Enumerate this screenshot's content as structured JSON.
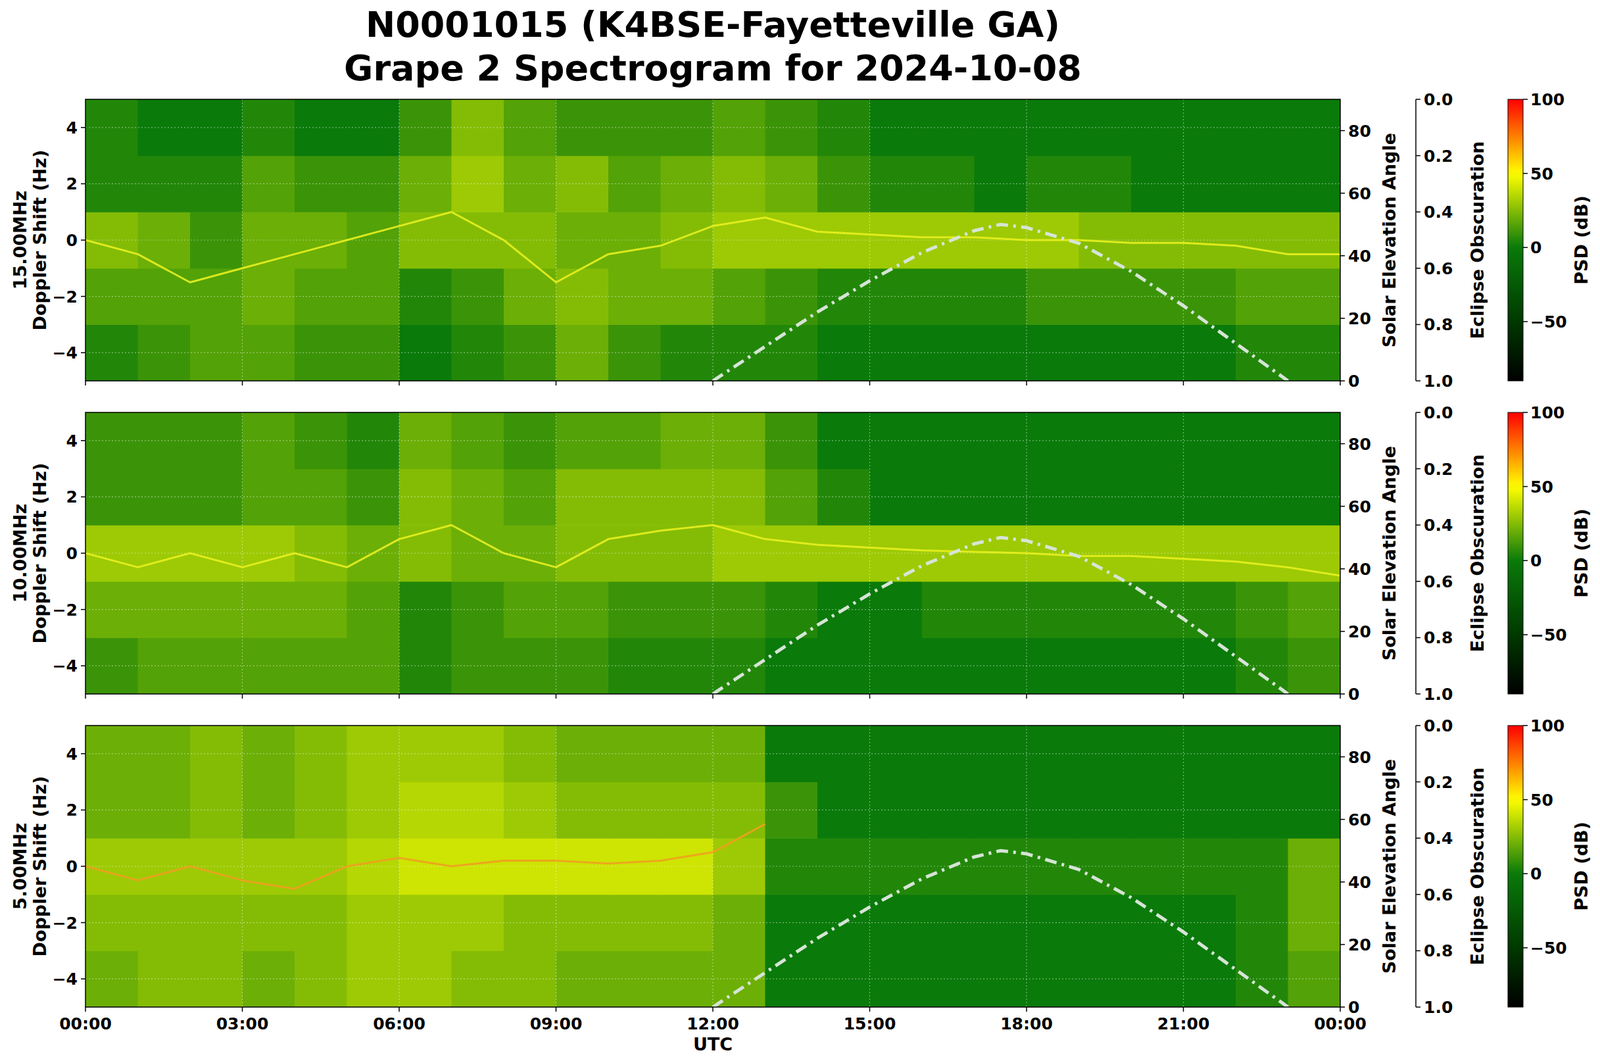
{
  "chart_data": {
    "type": "heatmap",
    "title": "N0001015 (K4BSE-Fayetteville GA)\nGrape 2 Spectrogram for 2024-10-08",
    "xlabel": "UTC",
    "xlim": [
      0,
      24
    ],
    "xticks": [
      {
        "value": 0,
        "label": "00:00"
      },
      {
        "value": 3,
        "label": "03:00"
      },
      {
        "value": 6,
        "label": "06:00"
      },
      {
        "value": 9,
        "label": "09:00"
      },
      {
        "value": 12,
        "label": "12:00"
      },
      {
        "value": 15,
        "label": "15:00"
      },
      {
        "value": 18,
        "label": "18:00"
      },
      {
        "value": 21,
        "label": "21:00"
      },
      {
        "value": 24,
        "label": "00:00"
      }
    ],
    "grid": true,
    "x_edges": [
      0,
      1,
      2,
      3,
      4,
      5,
      6,
      7,
      8,
      9,
      10,
      11,
      12,
      13,
      14,
      15,
      16,
      17,
      18,
      19,
      20,
      21,
      22,
      23,
      24
    ],
    "y_edges": [
      -5,
      -3,
      -1,
      1,
      3,
      5
    ],
    "ylim": [
      -5,
      5
    ],
    "yticks": [
      {
        "value": -4,
        "label": "−4"
      },
      {
        "value": -2,
        "label": "−2"
      },
      0,
      2,
      4
    ],
    "y2label": "Solar Elevation Angle",
    "y2lim": [
      0,
      90
    ],
    "y2ticks": [
      0,
      20,
      40,
      60,
      80
    ],
    "y3label": "Eclipse Obscuration",
    "y3lim": [
      1,
      0
    ],
    "y3ticks": [
      {
        "value": 0,
        "label": "0.0"
      },
      {
        "value": 0.2,
        "label": "0.2"
      },
      {
        "value": 0.4,
        "label": "0.4"
      },
      {
        "value": 0.6,
        "label": "0.6"
      },
      {
        "value": 0.8,
        "label": "0.8"
      },
      {
        "value": 1,
        "label": "1.0"
      }
    ],
    "colorbar": {
      "label": "PSD (dB)",
      "lim": [
        -90,
        100
      ],
      "ticks": [
        {
          "value": -50,
          "label": "−50"
        },
        0,
        50,
        100
      ]
    },
    "elevation": {
      "axis": "y2",
      "color": "#d6e4d6",
      "line_style": "dashdot",
      "x": [
        12,
        13,
        14,
        15,
        16,
        17,
        17.5,
        18,
        19,
        20,
        21,
        22,
        23
      ],
      "values": [
        0,
        11,
        22,
        32,
        41,
        48,
        50,
        49,
        44,
        35,
        24,
        12,
        0
      ]
    },
    "panels": [
      {
        "ylabel": "15.00MHz\nDoppler Shift (Hz)",
        "cells": [
          [
            5,
            10,
            15,
            15,
            10,
            10,
            0,
            5,
            10,
            20,
            10,
            5,
            5,
            5,
            0,
            0,
            0,
            0,
            0,
            0,
            0,
            0,
            5,
            5
          ],
          [
            15,
            15,
            15,
            20,
            15,
            15,
            5,
            10,
            20,
            25,
            20,
            20,
            15,
            10,
            5,
            5,
            5,
            5,
            10,
            10,
            10,
            10,
            15,
            15
          ],
          [
            25,
            20,
            10,
            20,
            20,
            15,
            25,
            25,
            25,
            20,
            20,
            25,
            30,
            30,
            30,
            30,
            30,
            30,
            30,
            25,
            25,
            25,
            25,
            25
          ],
          [
            5,
            5,
            5,
            15,
            10,
            10,
            20,
            30,
            20,
            25,
            15,
            20,
            25,
            20,
            10,
            5,
            5,
            0,
            5,
            5,
            0,
            0,
            0,
            0
          ],
          [
            5,
            0,
            0,
            5,
            0,
            0,
            10,
            25,
            15,
            10,
            10,
            10,
            15,
            10,
            5,
            0,
            0,
            0,
            0,
            0,
            0,
            0,
            0,
            0
          ]
        ],
        "trace": {
          "color": "#e8f020",
          "x": [
            0,
            1,
            2,
            3,
            4,
            5,
            6,
            7,
            8,
            9,
            10,
            11,
            12,
            13,
            14,
            15,
            16,
            17,
            18,
            19,
            20,
            21,
            22,
            23,
            24
          ],
          "values": [
            0,
            -0.5,
            -1.5,
            -1,
            -0.5,
            0,
            0.5,
            1,
            0,
            -1.5,
            -0.5,
            -0.2,
            0.5,
            0.8,
            0.3,
            0.2,
            0.1,
            0.1,
            0,
            0,
            -0.1,
            -0.1,
            -0.2,
            -0.5,
            -0.5
          ]
        }
      },
      {
        "ylabel": "10.00MHz\nDoppler Shift (Hz)",
        "cells": [
          [
            10,
            15,
            15,
            15,
            15,
            15,
            5,
            10,
            10,
            10,
            5,
            5,
            5,
            0,
            0,
            0,
            0,
            0,
            0,
            0,
            0,
            0,
            5,
            10
          ],
          [
            20,
            20,
            20,
            20,
            20,
            15,
            5,
            10,
            15,
            15,
            10,
            10,
            10,
            5,
            0,
            0,
            5,
            5,
            5,
            5,
            5,
            5,
            10,
            15
          ],
          [
            30,
            30,
            30,
            30,
            25,
            20,
            25,
            20,
            20,
            25,
            25,
            25,
            30,
            30,
            30,
            30,
            30,
            30,
            30,
            30,
            30,
            30,
            30,
            30
          ],
          [
            10,
            10,
            10,
            15,
            15,
            10,
            25,
            20,
            15,
            25,
            25,
            25,
            25,
            15,
            5,
            0,
            0,
            0,
            0,
            0,
            0,
            0,
            0,
            0
          ],
          [
            10,
            10,
            10,
            15,
            10,
            5,
            20,
            15,
            10,
            15,
            15,
            20,
            20,
            10,
            0,
            0,
            0,
            0,
            0,
            0,
            0,
            0,
            0,
            0
          ]
        ],
        "trace": {
          "color": "#e8f020",
          "x": [
            0,
            1,
            2,
            3,
            4,
            5,
            6,
            7,
            8,
            9,
            10,
            11,
            12,
            13,
            14,
            15,
            16,
            17,
            18,
            19,
            20,
            21,
            22,
            23,
            24
          ],
          "values": [
            0,
            -0.5,
            0,
            -0.5,
            0,
            -0.5,
            0.5,
            1,
            0,
            -0.5,
            0.5,
            0.8,
            1,
            0.5,
            0.3,
            0.2,
            0.1,
            0.05,
            0,
            -0.1,
            -0.1,
            -0.2,
            -0.3,
            -0.5,
            -0.8
          ]
        }
      },
      {
        "ylabel": "5.00MHz\nDoppler Shift (Hz)",
        "cells": [
          [
            20,
            25,
            25,
            20,
            25,
            30,
            30,
            25,
            25,
            20,
            20,
            20,
            20,
            0,
            0,
            0,
            0,
            0,
            0,
            0,
            0,
            0,
            5,
            15
          ],
          [
            25,
            25,
            25,
            25,
            25,
            30,
            30,
            30,
            25,
            25,
            25,
            25,
            20,
            0,
            0,
            0,
            0,
            0,
            0,
            0,
            0,
            0,
            5,
            20
          ],
          [
            30,
            30,
            30,
            30,
            30,
            35,
            40,
            40,
            40,
            40,
            40,
            40,
            30,
            5,
            5,
            5,
            5,
            5,
            5,
            5,
            5,
            5,
            5,
            20
          ],
          [
            20,
            20,
            25,
            20,
            25,
            30,
            35,
            35,
            30,
            25,
            25,
            25,
            25,
            10,
            0,
            0,
            0,
            0,
            0,
            0,
            0,
            0,
            0,
            0
          ],
          [
            20,
            20,
            25,
            20,
            25,
            30,
            30,
            30,
            25,
            20,
            20,
            20,
            20,
            0,
            0,
            0,
            0,
            0,
            0,
            0,
            0,
            0,
            0,
            0
          ]
        ],
        "trace": {
          "color": "#f0a020",
          "x": [
            0,
            1,
            2,
            3,
            4,
            5,
            6,
            7,
            8,
            9,
            10,
            11,
            12,
            13,
            14,
            15,
            16,
            17,
            18,
            19,
            20,
            21,
            22,
            23,
            24
          ],
          "values": [
            0,
            -0.5,
            0,
            -0.5,
            -0.8,
            0,
            0.3,
            0,
            0.2,
            0.2,
            0.1,
            0.2,
            0.5,
            1.5,
            null,
            null,
            null,
            null,
            null,
            null,
            null,
            null,
            null,
            null,
            null
          ]
        }
      }
    ]
  }
}
